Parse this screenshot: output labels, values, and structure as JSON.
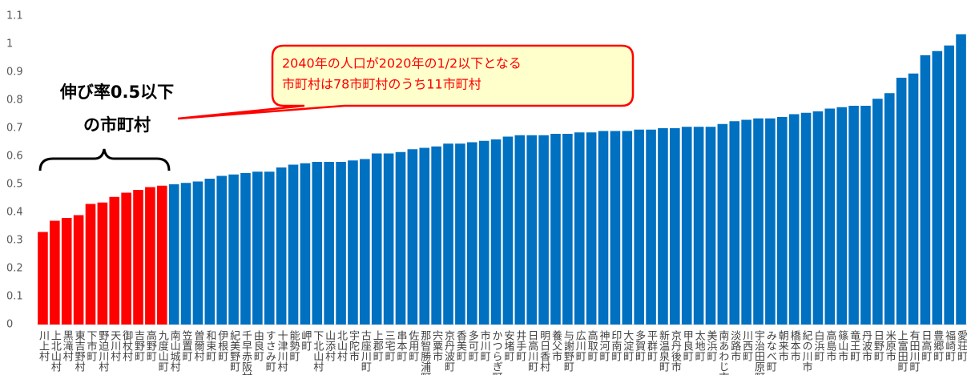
{
  "chart_data": {
    "type": "bar",
    "categories": [
      "川上村",
      "上北山村",
      "黒滝村",
      "東吉野村",
      "下市町",
      "野迫川村",
      "天川村",
      "御杖村",
      "吉野町",
      "高野町",
      "九度山町",
      "南山城村",
      "笠置町",
      "曽爾村",
      "和束町",
      "伊根町",
      "紀美野町",
      "千早赤阪村",
      "由良町",
      "すさみ町",
      "十津川村",
      "能勢町",
      "岬町",
      "下北山村",
      "山添村",
      "北山村",
      "宇陀市",
      "古座川町",
      "上郡町",
      "三宅町",
      "串本町",
      "佐用町",
      "那智勝浦町",
      "宍粟市",
      "京丹波町",
      "香美町",
      "多可町",
      "市川町",
      "かつらぎ町",
      "安堵町",
      "井手町",
      "日高川町",
      "明日香村",
      "養父市",
      "与謝野町",
      "広川町",
      "高取町",
      "神河町",
      "印南町",
      "大淀町",
      "多賀町",
      "平群町",
      "新温泉町",
      "京丹後市",
      "甲良町",
      "太地町",
      "美浜町",
      "南あわじ市",
      "淡路市",
      "川西町",
      "宇治田原町",
      "みなべ町",
      "朝来市",
      "橋本市",
      "紀の川市",
      "白浜町",
      "高島市",
      "篠山市",
      "竜王町",
      "丹波市",
      "日野町",
      "米原市",
      "上富田町",
      "有田川町",
      "日高町",
      "豊郷町",
      "福崎町",
      "愛荘町"
    ],
    "values": [
      0.33,
      0.37,
      0.38,
      0.39,
      0.43,
      0.435,
      0.455,
      0.47,
      0.48,
      0.49,
      0.495,
      0.5,
      0.505,
      0.51,
      0.52,
      0.53,
      0.535,
      0.54,
      0.545,
      0.545,
      0.56,
      0.57,
      0.575,
      0.58,
      0.58,
      0.58,
      0.585,
      0.59,
      0.61,
      0.61,
      0.615,
      0.625,
      0.63,
      0.635,
      0.645,
      0.645,
      0.65,
      0.655,
      0.66,
      0.67,
      0.675,
      0.675,
      0.675,
      0.68,
      0.68,
      0.685,
      0.685,
      0.69,
      0.69,
      0.69,
      0.695,
      0.695,
      0.7,
      0.7,
      0.705,
      0.705,
      0.705,
      0.715,
      0.725,
      0.73,
      0.735,
      0.735,
      0.74,
      0.75,
      0.755,
      0.76,
      0.77,
      0.775,
      0.78,
      0.78,
      0.805,
      0.825,
      0.88,
      0.895,
      0.96,
      0.975,
      0.995,
      1.035
    ],
    "colors": [
      "#ff0000",
      "#ff0000",
      "#ff0000",
      "#ff0000",
      "#ff0000",
      "#ff0000",
      "#ff0000",
      "#ff0000",
      "#ff0000",
      "#ff0000",
      "#ff0000",
      "#0070c0",
      "#0070c0",
      "#0070c0",
      "#0070c0",
      "#0070c0",
      "#0070c0",
      "#0070c0",
      "#0070c0",
      "#0070c0",
      "#0070c0",
      "#0070c0",
      "#0070c0",
      "#0070c0",
      "#0070c0",
      "#0070c0",
      "#0070c0",
      "#0070c0",
      "#0070c0",
      "#0070c0",
      "#0070c0",
      "#0070c0",
      "#0070c0",
      "#0070c0",
      "#0070c0",
      "#0070c0",
      "#0070c0",
      "#0070c0",
      "#0070c0",
      "#0070c0",
      "#0070c0",
      "#0070c0",
      "#0070c0",
      "#0070c0",
      "#0070c0",
      "#0070c0",
      "#0070c0",
      "#0070c0",
      "#0070c0",
      "#0070c0",
      "#0070c0",
      "#0070c0",
      "#0070c0",
      "#0070c0",
      "#0070c0",
      "#0070c0",
      "#0070c0",
      "#0070c0",
      "#0070c0",
      "#0070c0",
      "#0070c0",
      "#0070c0",
      "#0070c0",
      "#0070c0",
      "#0070c0",
      "#0070c0",
      "#0070c0",
      "#0070c0",
      "#0070c0",
      "#0070c0",
      "#0070c0",
      "#0070c0",
      "#0070c0",
      "#0070c0",
      "#0070c0",
      "#0070c0",
      "#0070c0",
      "#0070c0"
    ],
    "ylim": [
      0,
      1.1
    ],
    "yticks": [
      0,
      0.1,
      0.2,
      0.3,
      0.4,
      0.5,
      0.6,
      0.7,
      0.8,
      0.9,
      1,
      1.1
    ],
    "grid": false,
    "annotations": [
      [
        "伸び率0.5以下",
        "の市町村"
      ],
      [
        "2040年の人口が2020年の1/2以下となる",
        "市町村は78市町村のうち11市町村"
      ]
    ]
  }
}
